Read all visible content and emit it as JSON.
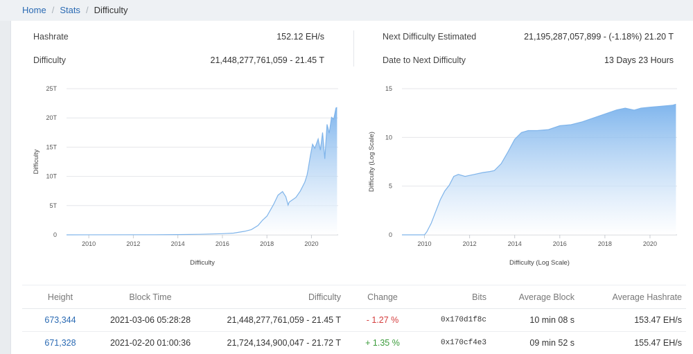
{
  "breadcrumb": {
    "home": "Home",
    "stats": "Stats",
    "current": "Difficulty"
  },
  "stats": {
    "hashrate_label": "Hashrate",
    "hashrate_value": "152.12 EH/s",
    "difficulty_label": "Difficulty",
    "difficulty_value": "21,448,277,761,059 - 21.45 T",
    "next_label": "Next Difficulty Estimated",
    "next_value": "21,195,287,057,899 - (-1.18%) 21.20 T",
    "date_label": "Date to Next Difficulty",
    "date_value": "13 Days 23 Hours"
  },
  "colors": {
    "fill_top": "#6aa9ea",
    "fill_bottom": "#ffffff",
    "line": "#7fb4ea",
    "link": "#2a6ab3"
  },
  "chart_data": [
    {
      "type": "area",
      "title": "",
      "xlabel": "Difficulty",
      "ylabel": "Difficulty",
      "xlim": [
        2009,
        2021.2
      ],
      "ylim": [
        0,
        25
      ],
      "x_ticks": [
        "2010",
        "2012",
        "2014",
        "2016",
        "2018",
        "2020"
      ],
      "y_ticks": [
        "0",
        "5T",
        "10T",
        "15T",
        "20T",
        "25T"
      ],
      "grid": true,
      "x": [
        2009.0,
        2013.0,
        2014.0,
        2015.0,
        2016.0,
        2016.5,
        2017.0,
        2017.3,
        2017.6,
        2017.8,
        2018.0,
        2018.3,
        2018.5,
        2018.7,
        2018.85,
        2018.95,
        2019.0,
        2019.3,
        2019.5,
        2019.7,
        2019.8,
        2019.85,
        2019.95,
        2020.05,
        2020.15,
        2020.3,
        2020.4,
        2020.5,
        2020.6,
        2020.7,
        2020.8,
        2020.9,
        2021.0,
        2021.1,
        2021.15
      ],
      "y": [
        0,
        0.02,
        0.05,
        0.1,
        0.2,
        0.3,
        0.6,
        0.9,
        1.6,
        2.5,
        3.2,
        5.2,
        6.8,
        7.4,
        6.5,
        5.1,
        5.6,
        6.4,
        7.5,
        9.0,
        10.2,
        11.2,
        13.5,
        15.5,
        14.8,
        16.4,
        14.5,
        17.5,
        13.0,
        18.9,
        17.4,
        20.1,
        19.8,
        21.7,
        21.8
      ],
      "series_name": ""
    },
    {
      "type": "area",
      "title": "",
      "xlabel": "Difficulty (Log Scale)",
      "ylabel": "Difficulty (Log Scale)",
      "xlim": [
        2009,
        2021.2
      ],
      "ylim": [
        0,
        15
      ],
      "x_ticks": [
        "2010",
        "2012",
        "2014",
        "2016",
        "2018",
        "2020"
      ],
      "y_ticks": [
        "0",
        "5",
        "10",
        "15"
      ],
      "grid": true,
      "x": [
        2009.0,
        2010.0,
        2010.1,
        2010.3,
        2010.5,
        2010.7,
        2010.9,
        2011.1,
        2011.3,
        2011.5,
        2011.8,
        2012.2,
        2012.6,
        2012.9,
        2013.1,
        2013.4,
        2013.7,
        2014.0,
        2014.3,
        2014.6,
        2015.0,
        2015.5,
        2016.0,
        2016.5,
        2017.0,
        2017.5,
        2018.0,
        2018.5,
        2018.9,
        2019.3,
        2019.6,
        2020.0,
        2020.5,
        2021.0,
        2021.15
      ],
      "y": [
        0,
        0,
        0.3,
        1.2,
        2.4,
        3.6,
        4.5,
        5.1,
        6.0,
        6.2,
        6.0,
        6.2,
        6.4,
        6.5,
        6.6,
        7.3,
        8.5,
        9.8,
        10.5,
        10.7,
        10.7,
        10.8,
        11.2,
        11.3,
        11.6,
        12.0,
        12.4,
        12.8,
        13.0,
        12.8,
        13.0,
        13.1,
        13.2,
        13.3,
        13.4
      ],
      "series_name": ""
    }
  ],
  "table": {
    "headers": [
      "Height",
      "Block Time",
      "Difficulty",
      "Change",
      "Bits",
      "Average Block",
      "Average Hashrate"
    ],
    "rows": [
      [
        "673,344",
        "2021-03-06 05:28:28",
        "21,448,277,761,059 - 21.45 T",
        "- 1.27 %",
        "0x170d1f8c",
        "10 min 08 s",
        "153.47 EH/s"
      ],
      [
        "671,328",
        "2021-02-20 01:00:36",
        "21,724,134,900,047 - 21.72 T",
        "+ 1.35 %",
        "0x170cf4e3",
        "09 min 52 s",
        "155.47 EH/s"
      ]
    ]
  }
}
